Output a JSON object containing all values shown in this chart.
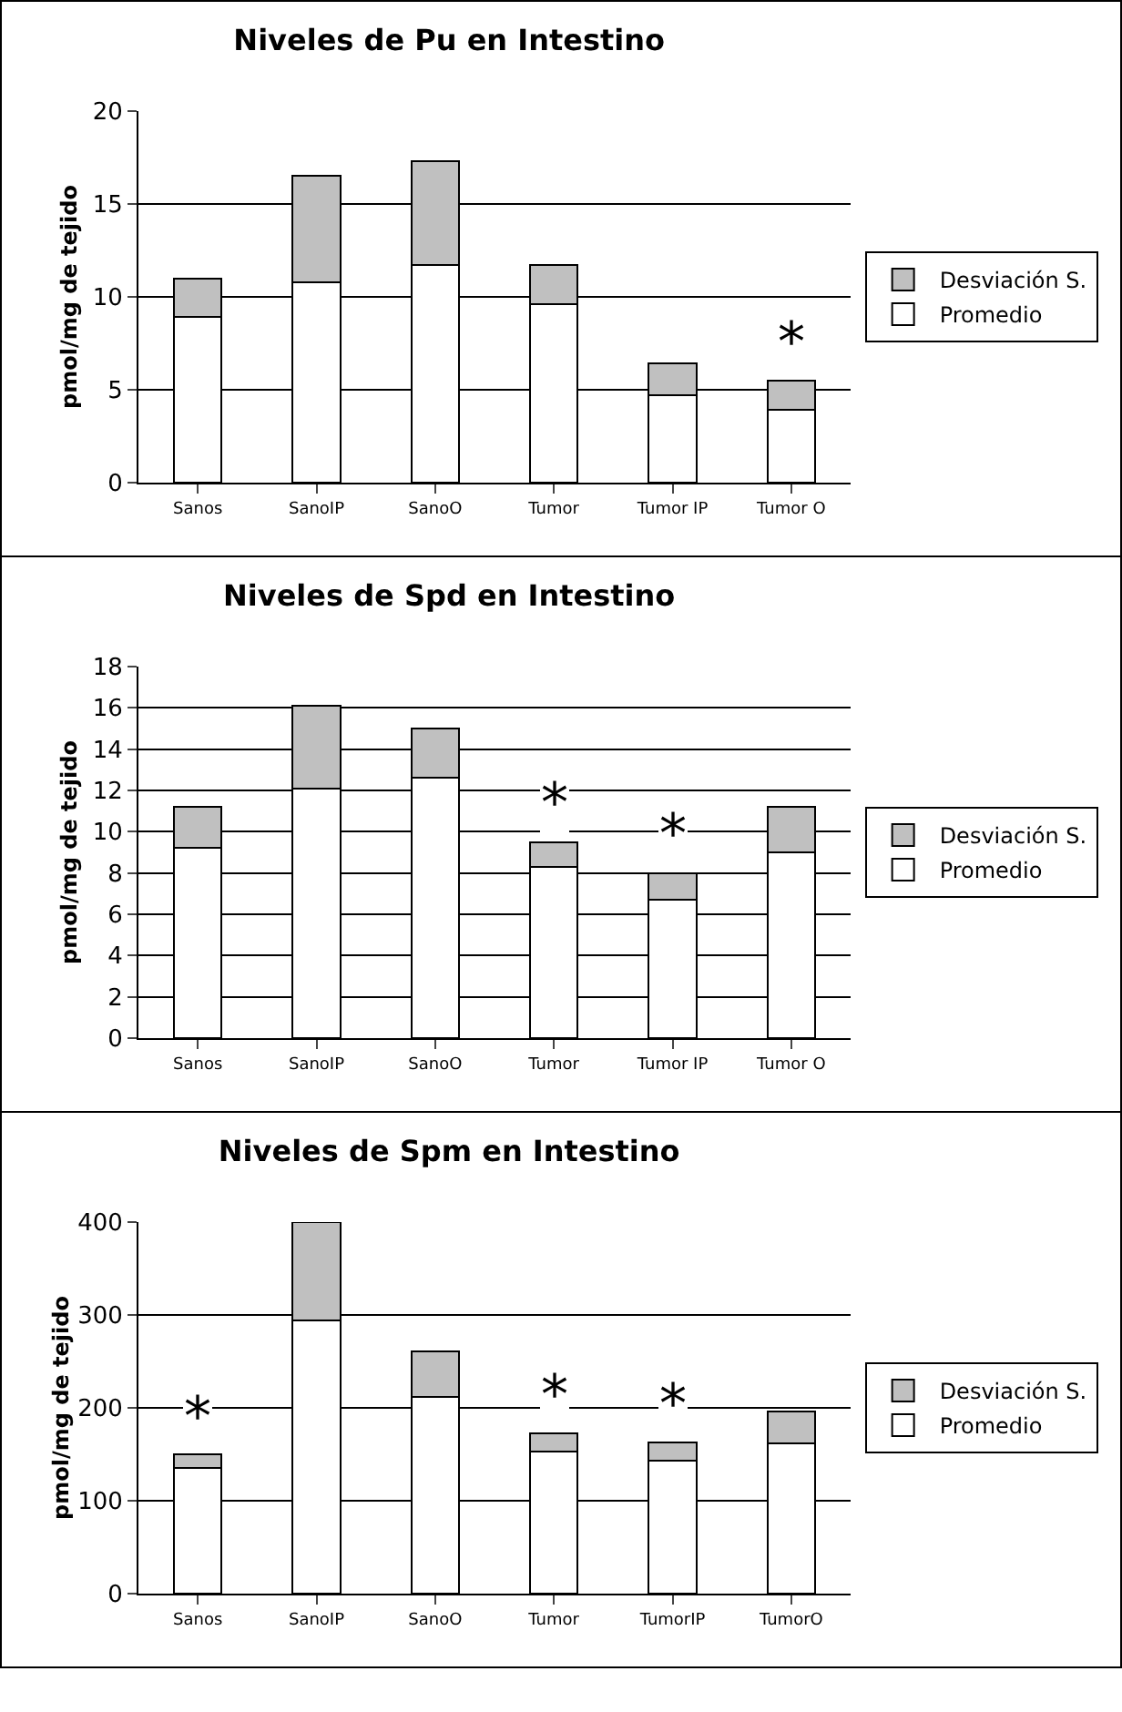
{
  "chart_data": [
    {
      "type": "bar",
      "title": "Niveles de Pu en Intestino",
      "ylabel": "pmol/mg de tejido",
      "categories": [
        "Sanos",
        "SanoIP",
        "SanoO",
        "Tumor",
        "Tumor IP",
        "Tumor O"
      ],
      "stacked": true,
      "ylim": [
        0,
        20
      ],
      "yticks": [
        0,
        5,
        10,
        15,
        20
      ],
      "grid": "y",
      "legend": "right",
      "series": [
        {
          "name": "Promedio",
          "color": "#ffffff",
          "values": [
            8.9,
            10.8,
            11.7,
            9.6,
            4.7,
            3.9
          ]
        },
        {
          "name": "Desviación S.",
          "color": "#c0c0c0",
          "values": [
            2.1,
            5.7,
            5.6,
            2.1,
            1.7,
            1.6
          ]
        }
      ],
      "annotations": [
        {
          "text": "*",
          "x": "Tumor O",
          "y": 5.5
        }
      ]
    },
    {
      "type": "bar",
      "title": "Niveles de Spd en Intestino",
      "ylabel": "pmol/mg de tejido",
      "categories": [
        "Sanos",
        "SanoIP",
        "SanoO",
        "Tumor",
        "Tumor IP",
        "Tumor O"
      ],
      "stacked": true,
      "ylim": [
        0,
        18
      ],
      "yticks": [
        0,
        2,
        4,
        6,
        8,
        10,
        12,
        14,
        16,
        18
      ],
      "grid": "y",
      "legend": "right",
      "series": [
        {
          "name": "Promedio",
          "color": "#ffffff",
          "values": [
            9.2,
            12.1,
            12.6,
            8.3,
            6.7,
            9.0
          ]
        },
        {
          "name": "Desviación S.",
          "color": "#c0c0c0",
          "values": [
            2.0,
            4.0,
            2.4,
            1.2,
            1.3,
            2.2
          ]
        }
      ],
      "annotations": [
        {
          "text": "*",
          "x": "Tumor",
          "y": 9.5
        },
        {
          "text": "*",
          "x": "Tumor IP",
          "y": 8.0
        }
      ]
    },
    {
      "type": "bar",
      "title": "Niveles de Spm en Intestino",
      "ylabel": "pmol/mg de tejido",
      "categories": [
        "Sanos",
        "SanoIP",
        "SanoO",
        "Tumor",
        "TumorIP",
        "TumorO"
      ],
      "stacked": true,
      "ylim": [
        0,
        400
      ],
      "yticks": [
        0,
        100,
        200,
        300,
        400
      ],
      "grid": "y",
      "legend": "right",
      "series": [
        {
          "name": "Promedio",
          "color": "#ffffff",
          "values": [
            135,
            294,
            212,
            153,
            143,
            162
          ]
        },
        {
          "name": "Desviación S.",
          "color": "#c0c0c0",
          "values": [
            15,
            106,
            49,
            20,
            20,
            34
          ]
        }
      ],
      "annotations": [
        {
          "text": "*",
          "x": "Sanos",
          "y": 150
        },
        {
          "text": "*",
          "x": "Tumor",
          "y": 173
        },
        {
          "text": "*",
          "x": "TumorIP",
          "y": 163
        }
      ]
    }
  ]
}
